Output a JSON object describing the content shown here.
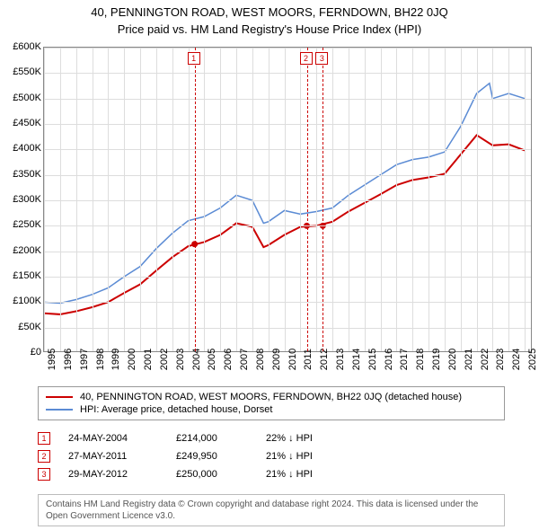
{
  "title": "40, PENNINGTON ROAD, WEST MOORS, FERNDOWN, BH22 0JQ",
  "subtitle": "Price paid vs. HM Land Registry's House Price Index (HPI)",
  "chart": {
    "type": "line",
    "x_start": 1995,
    "x_end": 2025.5,
    "ylim": [
      0,
      600000
    ],
    "ytick_step": 50000,
    "y_labels": [
      "£0",
      "£50K",
      "£100K",
      "£150K",
      "£200K",
      "£250K",
      "£300K",
      "£350K",
      "£400K",
      "£450K",
      "£500K",
      "£550K",
      "£600K"
    ],
    "x_years": [
      1995,
      1996,
      1997,
      1998,
      1999,
      2000,
      2001,
      2002,
      2003,
      2004,
      2005,
      2006,
      2007,
      2008,
      2009,
      2010,
      2011,
      2012,
      2013,
      2014,
      2015,
      2016,
      2017,
      2018,
      2019,
      2020,
      2021,
      2022,
      2023,
      2024,
      2025
    ],
    "background_color": "#ffffff",
    "grid_color": "#dddddd",
    "series": [
      {
        "name": "HPI: Average price, detached house, Dorset",
        "color": "#5b8bd4",
        "width": 1.5,
        "points": [
          [
            1995,
            100000
          ],
          [
            1996,
            98000
          ],
          [
            1997,
            105000
          ],
          [
            1998,
            115000
          ],
          [
            1999,
            128000
          ],
          [
            2000,
            150000
          ],
          [
            2001,
            170000
          ],
          [
            2002,
            205000
          ],
          [
            2003,
            235000
          ],
          [
            2004,
            260000
          ],
          [
            2005,
            268000
          ],
          [
            2006,
            285000
          ],
          [
            2007,
            310000
          ],
          [
            2008,
            300000
          ],
          [
            2008.7,
            255000
          ],
          [
            2009,
            258000
          ],
          [
            2010,
            280000
          ],
          [
            2011,
            273000
          ],
          [
            2012,
            278000
          ],
          [
            2013,
            285000
          ],
          [
            2014,
            310000
          ],
          [
            2015,
            330000
          ],
          [
            2016,
            350000
          ],
          [
            2017,
            370000
          ],
          [
            2018,
            380000
          ],
          [
            2019,
            385000
          ],
          [
            2020,
            395000
          ],
          [
            2021,
            445000
          ],
          [
            2022,
            510000
          ],
          [
            2022.8,
            530000
          ],
          [
            2023,
            500000
          ],
          [
            2024,
            510000
          ],
          [
            2025,
            500000
          ]
        ]
      },
      {
        "name": "40, PENNINGTON ROAD, WEST MOORS, FERNDOWN, BH22 0JQ (detached house)",
        "color": "#cc0000",
        "width": 2,
        "points": [
          [
            1995,
            78000
          ],
          [
            1996,
            76000
          ],
          [
            1997,
            82000
          ],
          [
            1998,
            90000
          ],
          [
            1999,
            100000
          ],
          [
            2000,
            118000
          ],
          [
            2001,
            135000
          ],
          [
            2002,
            162000
          ],
          [
            2003,
            188000
          ],
          [
            2004,
            210000
          ],
          [
            2005,
            218000
          ],
          [
            2006,
            232000
          ],
          [
            2007,
            255000
          ],
          [
            2008,
            248000
          ],
          [
            2008.7,
            208000
          ],
          [
            2009,
            212000
          ],
          [
            2010,
            232000
          ],
          [
            2011,
            248000
          ],
          [
            2012,
            250000
          ],
          [
            2013,
            258000
          ],
          [
            2014,
            278000
          ],
          [
            2015,
            295000
          ],
          [
            2016,
            312000
          ],
          [
            2017,
            330000
          ],
          [
            2018,
            340000
          ],
          [
            2019,
            345000
          ],
          [
            2020,
            352000
          ],
          [
            2021,
            390000
          ],
          [
            2022,
            428000
          ],
          [
            2023,
            408000
          ],
          [
            2024,
            410000
          ],
          [
            2025,
            398000
          ]
        ]
      }
    ],
    "markers": [
      {
        "num": "1",
        "x": 2004.4,
        "y": 214000,
        "date": "24-MAY-2004",
        "price": "£214,000",
        "pct": "22% ↓ HPI"
      },
      {
        "num": "2",
        "x": 2011.4,
        "y": 249950,
        "date": "27-MAY-2011",
        "price": "£249,950",
        "pct": "21% ↓ HPI"
      },
      {
        "num": "3",
        "x": 2012.4,
        "y": 250000,
        "date": "29-MAY-2012",
        "price": "£250,000",
        "pct": "21% ↓ HPI"
      }
    ]
  },
  "legend": {
    "row1": "40, PENNINGTON ROAD, WEST MOORS, FERNDOWN, BH22 0JQ (detached house)",
    "row2": "HPI: Average price, detached house, Dorset"
  },
  "footer": "Contains HM Land Registry data © Crown copyright and database right 2024. This data is licensed under the Open Government Licence v3.0."
}
